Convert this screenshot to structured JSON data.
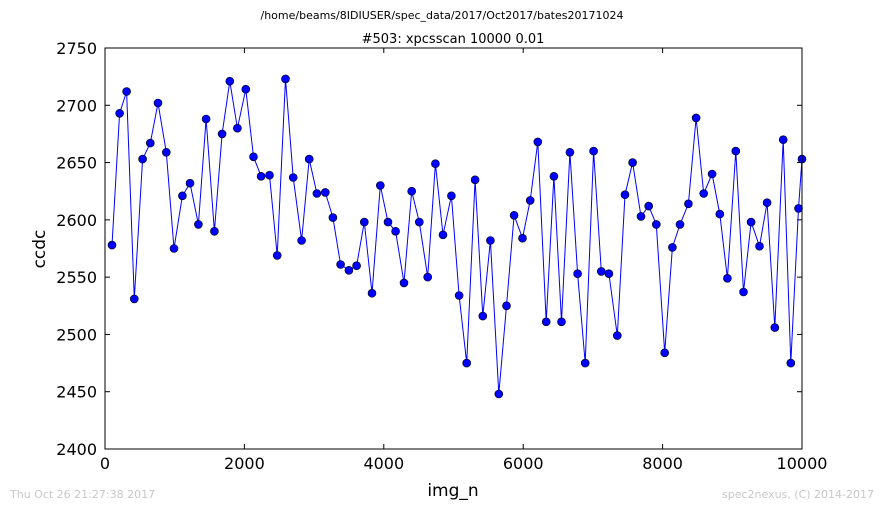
{
  "chart_data": {
    "type": "line",
    "suptitle": "/home/beams/8IDIUSER/spec_data/2017/Oct2017/bates20171024",
    "title": "#503: xpcsscan 10000 0.01",
    "xlabel": "img_n",
    "ylabel": "ccdc",
    "xlim": [
      0,
      10000
    ],
    "ylim": [
      2400,
      2750
    ],
    "xticks": [
      0,
      2000,
      4000,
      6000,
      8000,
      10000
    ],
    "yticks": [
      2400,
      2450,
      2500,
      2550,
      2600,
      2650,
      2700,
      2750
    ],
    "grid": false,
    "series": [
      {
        "color": "#0000ff",
        "x": [
          100,
          210,
          310,
          420,
          540,
          650,
          760,
          880,
          990,
          1110,
          1220,
          1340,
          1450,
          1570,
          1680,
          1790,
          1900,
          2020,
          2130,
          2240,
          2360,
          2470,
          2590,
          2700,
          2820,
          2930,
          3040,
          3160,
          3270,
          3380,
          3500,
          3610,
          3720,
          3830,
          3950,
          4060,
          4170,
          4290,
          4400,
          4510,
          4630,
          4740,
          4850,
          4970,
          5080,
          5190,
          5310,
          5420,
          5530,
          5650,
          5760,
          5870,
          5990,
          6100,
          6210,
          6330,
          6440,
          6550,
          6670,
          6780,
          6890,
          7010,
          7120,
          7230,
          7350,
          7460,
          7570,
          7690,
          7800,
          7910,
          8030,
          8140,
          8250,
          8370,
          8480,
          8590,
          8710,
          8820,
          8930,
          9050,
          9160,
          9270,
          9390,
          9500,
          9610,
          9730,
          9840,
          9950,
          10000
        ],
        "y": [
          2578,
          2693,
          2712,
          2531,
          2653,
          2667,
          2702,
          2659,
          2575,
          2621,
          2632,
          2596,
          2688,
          2590,
          2675,
          2721,
          2680,
          2714,
          2655,
          2638,
          2639,
          2569,
          2723,
          2637,
          2582,
          2653,
          2623,
          2624,
          2602,
          2561,
          2556,
          2560,
          2598,
          2536,
          2630,
          2598,
          2590,
          2545,
          2625,
          2598,
          2550,
          2649,
          2587,
          2621,
          2534,
          2475,
          2635,
          2516,
          2582,
          2448,
          2525,
          2604,
          2584,
          2617,
          2668,
          2511,
          2638,
          2511,
          2659,
          2553,
          2475,
          2660,
          2555,
          2553,
          2499,
          2622,
          2650,
          2603,
          2612,
          2596,
          2484,
          2576,
          2596,
          2614,
          2689,
          2623,
          2640,
          2605,
          2549,
          2660,
          2537,
          2598,
          2577,
          2615,
          2506,
          2670,
          2475,
          2610,
          2653
        ]
      }
    ]
  },
  "footer": {
    "timestamp": "Thu Oct 26 21:27:38 2017",
    "credit": "spec2nexus, (C) 2014-2017"
  }
}
